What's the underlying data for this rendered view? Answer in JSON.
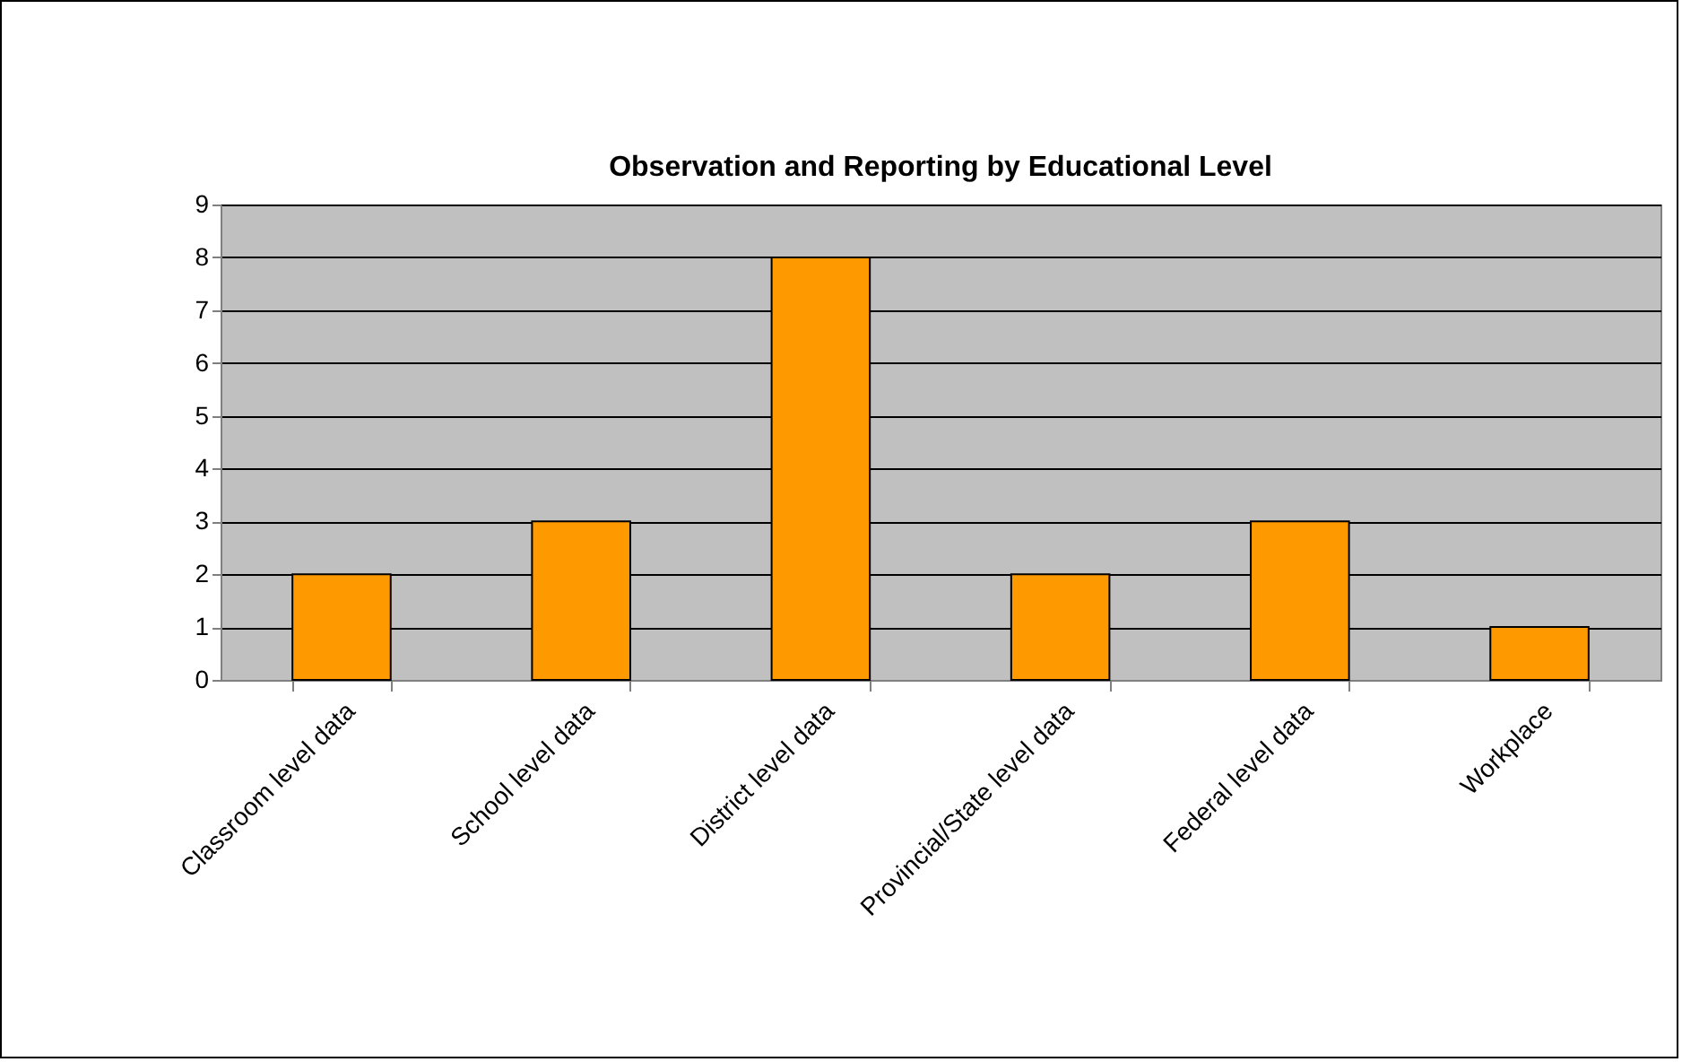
{
  "chart_data": {
    "type": "bar",
    "title": "Observation and Reporting by Educational Level",
    "categories": [
      "Classroom level data",
      "School level data",
      "District level data",
      "Provincial/State level data",
      "Federal level data",
      "Workplace"
    ],
    "values": [
      2,
      3,
      8,
      2,
      3,
      1
    ],
    "color": "#ff9900",
    "ylim": [
      0,
      9
    ],
    "yticks": [
      0,
      1,
      2,
      3,
      4,
      5,
      6,
      7,
      8,
      9
    ],
    "grid": true
  }
}
